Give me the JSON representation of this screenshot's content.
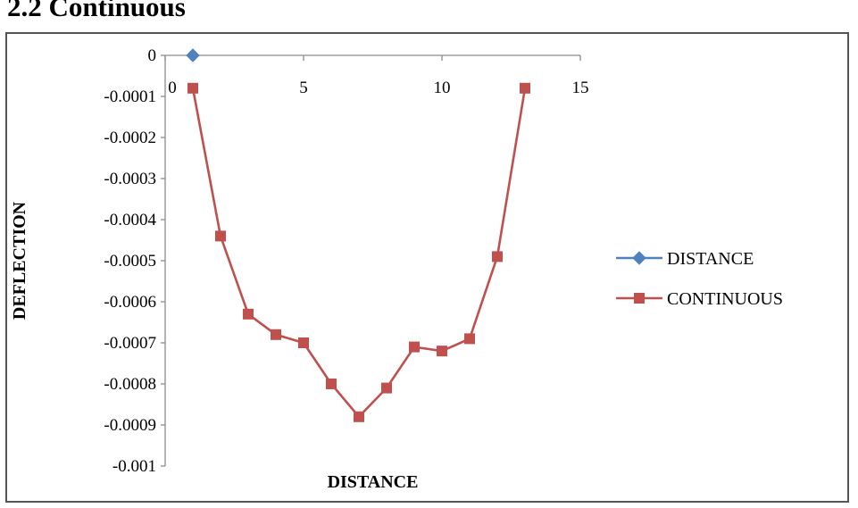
{
  "title": "2.2 Continuous",
  "chart_data": {
    "type": "line",
    "title": "",
    "xlabel": "DISTANCE",
    "ylabel": "DEFLECTION",
    "xlim": [
      0,
      15
    ],
    "ylim": [
      -0.001,
      0
    ],
    "x_ticks": [
      0,
      5,
      10,
      15
    ],
    "x_tick_labels": [
      "0",
      "5",
      "10",
      "15"
    ],
    "y_ticks": [
      0,
      -0.0001,
      -0.0002,
      -0.0003,
      -0.0004,
      -0.0005,
      -0.0006,
      -0.0007,
      -0.0008,
      -0.0009,
      -0.001
    ],
    "y_tick_labels": [
      "0",
      "-0.0001",
      "-0.0002",
      "-0.0003",
      "-0.0004",
      "-0.0005",
      "-0.0006",
      "-0.0007",
      "-0.0008",
      "-0.0009",
      "-0.001"
    ],
    "grid": false,
    "legend_position": "right",
    "axis_color": "#8c8c8c",
    "series": [
      {
        "name": "DISTANCE",
        "color": "#4F81BD",
        "marker": "diamond",
        "points": [
          [
            1,
            0
          ]
        ]
      },
      {
        "name": "CONTINUOUS",
        "color": "#C0504D",
        "marker": "square",
        "points": [
          [
            1,
            -8e-05
          ],
          [
            2,
            -0.00044
          ],
          [
            3,
            -0.00063
          ],
          [
            4,
            -0.00068
          ],
          [
            5,
            -0.0007
          ],
          [
            6,
            -0.0008
          ],
          [
            7,
            -0.00088
          ],
          [
            8,
            -0.00081
          ],
          [
            9,
            -0.00071
          ],
          [
            10,
            -0.00072
          ],
          [
            11,
            -0.00069
          ],
          [
            12,
            -0.00049
          ],
          [
            13,
            -8e-05
          ]
        ]
      }
    ]
  }
}
